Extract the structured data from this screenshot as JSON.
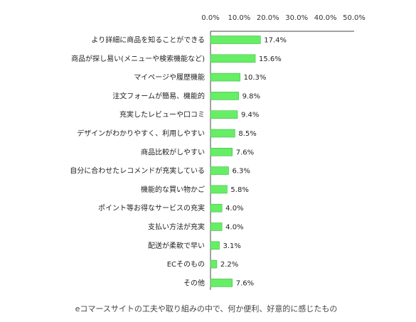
{
  "chart_data": {
    "type": "bar",
    "orientation": "horizontal",
    "categories": [
      "より詳細に商品を知ることができる",
      "商品が探し易い(メニューや検索機能など)",
      "マイページや履歴機能",
      "注文フォームが簡易、機能的",
      "充実したレビューや口コミ",
      "デザインがわかりやすく、利用しやすい",
      "商品比較がしやすい",
      "自分に合わせたレコメンドが充実している",
      "機能的な買い物かご",
      "ポイント等お得なサービスの充実",
      "支払い方法が充実",
      "配送が柔軟で早い",
      "ECそのもの",
      "その他"
    ],
    "values": [
      17.4,
      15.6,
      10.3,
      9.8,
      9.4,
      8.5,
      7.6,
      6.3,
      5.8,
      4.0,
      4.0,
      3.1,
      2.2,
      7.6
    ],
    "value_labels": [
      "17.4%",
      "15.6%",
      "10.3%",
      "9.8%",
      "9.4%",
      "8.5%",
      "7.6%",
      "6.3%",
      "5.8%",
      "4.0%",
      "4.0%",
      "3.1%",
      "2.2%",
      "7.6%"
    ],
    "xlim": [
      0,
      50
    ],
    "x_ticks": [
      "0.0%",
      "10.0%",
      "20.0%",
      "30.0%",
      "40.0%",
      "50.0%"
    ],
    "axis_position": "top",
    "grid": false,
    "legend": "none",
    "bar_color": "#66ee66",
    "bar_border_color": "#44bb44",
    "caption": "eコマースサイトの工夫や取り組みの中で、何か便利、好意的に感じたもの"
  }
}
